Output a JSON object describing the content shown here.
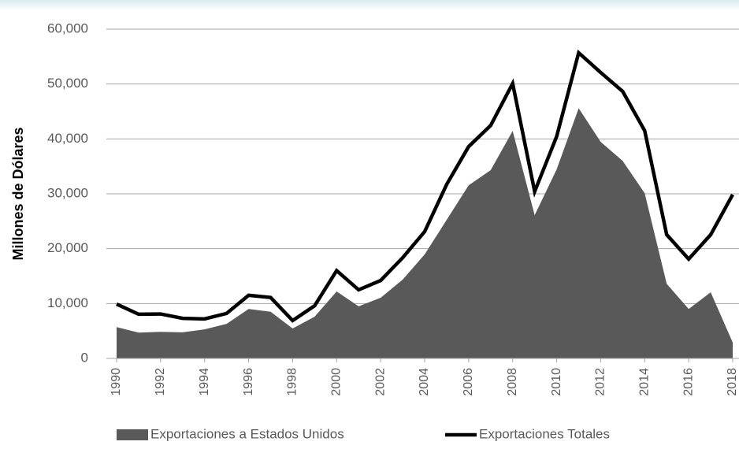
{
  "chart_data": {
    "type": "area-line",
    "y_axis_label": "Millones de Dólares",
    "x": [
      1990,
      1991,
      1992,
      1993,
      1994,
      1995,
      1996,
      1997,
      1998,
      1999,
      2000,
      2001,
      2002,
      2003,
      2004,
      2005,
      2006,
      2007,
      2008,
      2009,
      2010,
      2011,
      2012,
      2013,
      2014,
      2015,
      2016,
      2017,
      2018
    ],
    "series": [
      {
        "name": "Exportaciones a Estados Unidos",
        "kind": "area",
        "color": "#595959",
        "values": [
          5700,
          4700,
          4850,
          4750,
          5300,
          6300,
          9000,
          8500,
          5450,
          7600,
          12200,
          9500,
          11050,
          14350,
          18950,
          25250,
          31550,
          34300,
          41450,
          26100,
          34450,
          45600,
          39450,
          36000,
          30100,
          13600,
          9000,
          12050,
          2900
        ]
      },
      {
        "name": "Exportaciones Totales",
        "kind": "line",
        "color": "#000000",
        "values": [
          9900,
          8050,
          8100,
          7300,
          7200,
          8200,
          11500,
          11100,
          6900,
          9600,
          16000,
          12500,
          14200,
          18350,
          23100,
          31700,
          38600,
          42450,
          50100,
          30400,
          40450,
          55700,
          52100,
          48650,
          41500,
          22550,
          18100,
          22550,
          29850
        ]
      }
    ],
    "xlim": [
      1990,
      2018
    ],
    "xticks": [
      1990,
      1992,
      1994,
      1996,
      1998,
      2000,
      2002,
      2004,
      2006,
      2008,
      2010,
      2012,
      2014,
      2016,
      2018
    ],
    "ylim": [
      0,
      60000
    ],
    "yticks": [
      0,
      {
        "value": 10000,
        "label": "10,000"
      },
      {
        "value": 20000,
        "label": "20,000"
      },
      {
        "value": 30000,
        "label": "30,000"
      },
      {
        "value": 40000,
        "label": "40,000"
      },
      {
        "value": 50000,
        "label": "50,000"
      },
      {
        "value": 60000,
        "label": "60,000"
      }
    ],
    "grid": true,
    "legend": "bottom"
  }
}
